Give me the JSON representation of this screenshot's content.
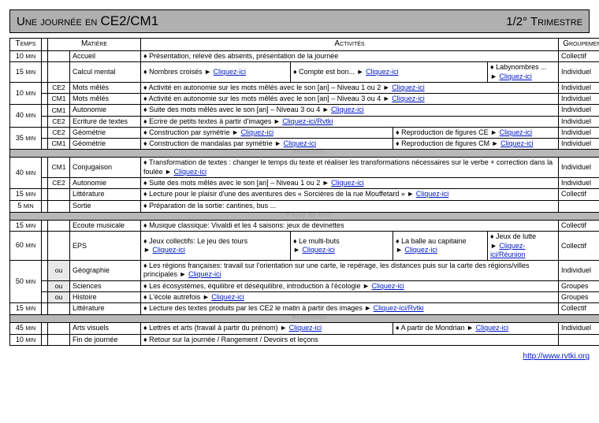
{
  "title": {
    "left_pre": "Une journée en ",
    "left_cls": "CE2/CM1",
    "right": "1/2° Trimestre"
  },
  "headers": {
    "temps": "Temps",
    "matiere": "Matière",
    "activites": "Activités",
    "groupement": "Groupement"
  },
  "link": {
    "click": "Cliquez-ici",
    "click_rvtki": "Cliquez-ici/Rvtki",
    "click_reunion": "Cliquez-ici/Réunion"
  },
  "sep": {
    "rec": "Récréation",
    "midi": "Pause de midi"
  },
  "r": {
    "accueil": {
      "t": "10",
      "mat": "Accueil",
      "a": "Présentation, relevé des absents, présentation de la journée",
      "grp": "Collectif"
    },
    "calcul": {
      "t": "15",
      "mat": "Calcul mental",
      "a1": "Nombres croisés ",
      "a2": "Compte est bon... ",
      "a3": "Labynombres ... ",
      "grp": "Individuel"
    },
    "mots_ce2": {
      "t": "10",
      "lvl": "CE2",
      "mat": "Mots mêlés",
      "a": "Activité en autonomie sur les mots mêlés  avec le son [an] – Niveau 1 ou 2 ",
      "grp": "Individuel"
    },
    "mots_cm1": {
      "lvl": "CM1",
      "mat": "Mots mêlés",
      "a": "Activité en autonomie sur les mots mêlés  avec le son [an] – Niveau 3 ou 4 ",
      "grp": "Individuel"
    },
    "auto_cm1": {
      "t": "40",
      "lvl": "CM1",
      "mat": "Autonomie",
      "a": "Suite des mots mêlés  avec le son [an] – Niveau 3 ou 4 ",
      "grp": "Individuel"
    },
    "ecr_ce2": {
      "lvl": "CE2",
      "mat": "Ecriture de textes",
      "a": "Ecrire de petits textes à partir d'images ",
      "grp": "Individuel"
    },
    "geo_ce2": {
      "t": "35",
      "lvl": "CE2",
      "mat": "Géométrie",
      "a1": "Construction par symétrie ",
      "a2": "Reproduction de figures CE  ",
      "grp": "Individuel"
    },
    "geo_cm1": {
      "lvl": "CM1",
      "mat": "Géométrie",
      "a1": "Construction de mandalas par symétrie ",
      "a2": "Reproduction de figures CM  ",
      "grp": "Individuel"
    },
    "conj_cm1": {
      "t": "40",
      "lvl": "CM1",
      "mat": "Conjugaison",
      "a": "Transformation de textes : changer le temps du texte et réaliser les transformations nécessaires sur le verbe + correction dans la foulée  ",
      "grp": "Individuel"
    },
    "auto_ce2": {
      "lvl": "CE2",
      "mat": "Autonomie",
      "a": "Suite des mots mêlés  avec le son [an] – Niveau 1 ou 2 ",
      "grp": "Individuel"
    },
    "litt1": {
      "t": "15",
      "mat": "Littérature",
      "a": "Lecture pour le plaisir d'une des aventures des « Sorcières de la rue Mouffetard » ",
      "grp": "Collectif"
    },
    "sortie": {
      "t": "5",
      "mat": "Sortie",
      "a": "Préparation de la sortie: cantines, bus ...",
      "grp": ""
    },
    "ecoute": {
      "t": "15",
      "mat": "Ecoute musicale",
      "a": "Musique classique: Vivaldi et les 4 saisons: jeux de devinettes",
      "grp": "Collectif"
    },
    "eps": {
      "t": "60",
      "mat": "EPS",
      "a1": "Jeux collectifs: Le jeu des tours ",
      "a2": "Le multi-buts ",
      "a3": "La balle au capitaine ",
      "a4": "Jeux de lutte ",
      "grp": "Collectif"
    },
    "geog": {
      "t": "50",
      "lvl": "ou",
      "mat": "Géographie",
      "a": "Les régions françaises: travail sur l'orientation sur une carte, le repérage, les distances puis sur la carte des régions/villes principales ",
      "grp": "Individuel"
    },
    "sci": {
      "lvl": "ou",
      "mat": "Sciences",
      "a": "Les écosystèmes, équilibre et déséquilibre, introduction à l'écologie  ",
      "grp": "Groupes"
    },
    "hist": {
      "lvl": "ou",
      "mat": "Histoire",
      "a": "L'école autrefois ",
      "grp": "Groupes"
    },
    "litt2": {
      "t": "15",
      "mat": "Littérature",
      "a": "Lecture des textes produits par les CE2 le matin à partir des images ",
      "grp": "Collectif"
    },
    "arts": {
      "t": "45",
      "mat": "Arts visuels",
      "a1": "Lettres et arts (travail à partir du prénom) ",
      "a2": "A partir de Mondrian ",
      "grp": "Individuel"
    },
    "fin": {
      "t": "10",
      "mat": "Fin de journée",
      "a": "Retour sur la journée / Rangement / Devoirs et leçons",
      "grp": ""
    }
  },
  "footer_url": "http://www.rvtki.org"
}
